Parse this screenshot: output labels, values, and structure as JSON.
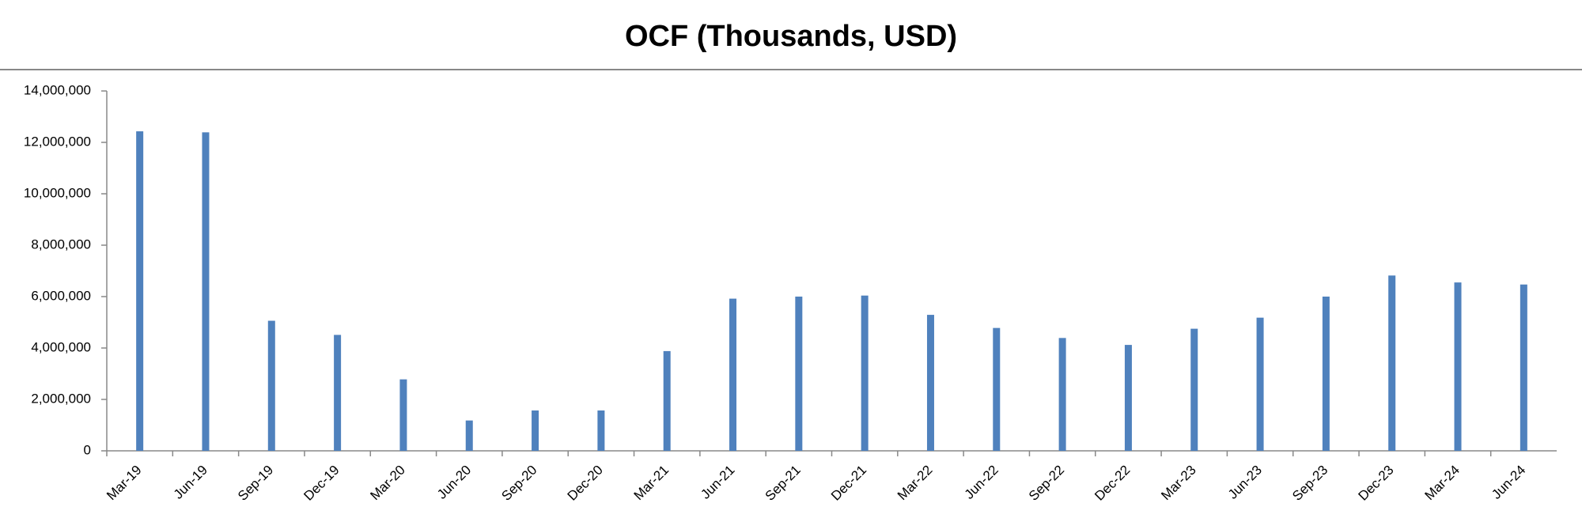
{
  "chart_data": {
    "type": "bar",
    "title": "OCF (Thousands, USD)",
    "categories": [
      "Mar-19",
      "Jun-19",
      "Sep-19",
      "Dec-19",
      "Mar-20",
      "Jun-20",
      "Sep-20",
      "Dec-20",
      "Mar-21",
      "Jun-21",
      "Sep-21",
      "Dec-21",
      "Mar-22",
      "Jun-22",
      "Sep-22",
      "Dec-22",
      "Mar-23",
      "Jun-23",
      "Sep-23",
      "Dec-23",
      "Mar-24",
      "Jun-24"
    ],
    "values": [
      12430000,
      12390000,
      5060000,
      4510000,
      2780000,
      1180000,
      1570000,
      1570000,
      3880000,
      5920000,
      6000000,
      6040000,
      5290000,
      4780000,
      4390000,
      4120000,
      4750000,
      5180000,
      6000000,
      6820000,
      6550000,
      6470000
    ],
    "color": "#4f81bd",
    "ylim": [
      0,
      14000000
    ],
    "yticks": [
      0,
      {
        "value": 2000000,
        "label": "2,000,000"
      },
      {
        "value": 4000000,
        "label": "4,000,000"
      },
      {
        "value": 6000000,
        "label": "6,000,000"
      },
      {
        "value": 8000000,
        "label": "8,000,000"
      },
      {
        "value": 10000000,
        "label": "10,000,000"
      },
      {
        "value": 12000000,
        "label": "12,000,000"
      },
      {
        "value": 14000000,
        "label": "14,000,000"
      }
    ],
    "grid": false
  }
}
